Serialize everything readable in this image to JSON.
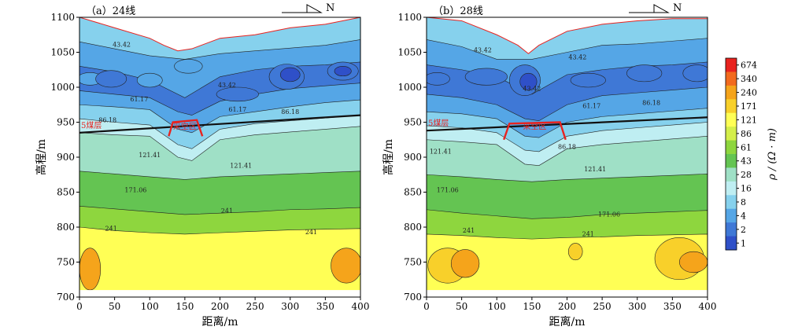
{
  "chart_data": [
    {
      "type": "heatmap",
      "panel_label": "（a）24线",
      "north_label": "N",
      "xlabel": "距离/m",
      "ylabel": "高程/m",
      "xlim": [
        0,
        400
      ],
      "ylim": [
        700,
        1100
      ],
      "x_ticks": [
        "0",
        "50",
        "100",
        "150",
        "200",
        "250",
        "300",
        "350",
        "400"
      ],
      "y_ticks": [
        "700",
        "750",
        "800",
        "850",
        "900",
        "950",
        "1000",
        "1050",
        "1100"
      ],
      "coal_seam_label": "5煤层",
      "goaf_label": "采空区",
      "coal_seam_line": [
        [
          0,
          935
        ],
        [
          400,
          960
        ]
      ],
      "goaf_outline": [
        [
          127,
          930
        ],
        [
          133,
          950
        ],
        [
          167,
          953
        ],
        [
          175,
          930
        ]
      ],
      "topography": [
        [
          0,
          1100
        ],
        [
          50,
          1085
        ],
        [
          100,
          1070
        ],
        [
          120,
          1060
        ],
        [
          140,
          1052
        ],
        [
          160,
          1055
        ],
        [
          200,
          1070
        ],
        [
          250,
          1075
        ],
        [
          300,
          1085
        ],
        [
          350,
          1090
        ],
        [
          400,
          1100
        ]
      ],
      "contour_labels": [
        "43.42",
        "43.42",
        "61.17",
        "61.17",
        "86.18",
        "86.18",
        "121.41",
        "121.41",
        "171.06",
        "241",
        "241",
        "241"
      ],
      "bands": [
        {
          "upper": [
            [
              0,
              1065
            ],
            [
              50,
              1055
            ],
            [
              100,
              1045
            ],
            [
              150,
              1040
            ],
            [
              200,
              1048
            ],
            [
              250,
              1052
            ],
            [
              300,
              1056
            ],
            [
              350,
              1060
            ],
            [
              400,
              1068
            ]
          ]
        },
        {
          "upper": [
            [
              0,
              1030
            ],
            [
              50,
              1022
            ],
            [
              100,
              1010
            ],
            [
              150,
              985
            ],
            [
              200,
              1015
            ],
            [
              250,
              1025
            ],
            [
              300,
              1030
            ],
            [
              350,
              1032
            ],
            [
              400,
              1036
            ]
          ]
        },
        {
          "upper": [
            [
              0,
              995
            ],
            [
              50,
              990
            ],
            [
              100,
              985
            ],
            [
              140,
              965
            ],
            [
              160,
              960
            ],
            [
              200,
              980
            ],
            [
              250,
              990
            ],
            [
              300,
              998
            ],
            [
              350,
              1002
            ],
            [
              400,
              1006
            ]
          ]
        },
        {
          "upper": [
            [
              0,
              975
            ],
            [
              50,
              972
            ],
            [
              100,
              968
            ],
            [
              140,
              940
            ],
            [
              160,
              935
            ],
            [
              200,
              958
            ],
            [
              250,
              965
            ],
            [
              300,
              972
            ],
            [
              350,
              978
            ],
            [
              400,
              982
            ]
          ]
        },
        {
          "upper": [
            [
              0,
              955
            ],
            [
              50,
              950
            ],
            [
              100,
              946
            ],
            [
              140,
              918
            ],
            [
              160,
              912
            ],
            [
              200,
              940
            ],
            [
              250,
              948
            ],
            [
              300,
              952
            ],
            [
              350,
              956
            ],
            [
              400,
              960
            ]
          ]
        },
        {
          "upper": [
            [
              0,
              935
            ],
            [
              50,
              932
            ],
            [
              100,
              930
            ],
            [
              140,
              900
            ],
            [
              160,
              895
            ],
            [
              200,
              925
            ],
            [
              250,
              932
            ],
            [
              300,
              936
            ],
            [
              350,
              940
            ],
            [
              400,
              944
            ]
          ]
        },
        {
          "upper": [
            [
              0,
              880
            ],
            [
              50,
              876
            ],
            [
              100,
              872
            ],
            [
              150,
              868
            ],
            [
              200,
              872
            ],
            [
              250,
              874
            ],
            [
              300,
              876
            ],
            [
              350,
              878
            ],
            [
              400,
              880
            ]
          ]
        },
        {
          "upper": [
            [
              0,
              830
            ],
            [
              50,
              826
            ],
            [
              100,
              822
            ],
            [
              150,
              818
            ],
            [
              200,
              820
            ],
            [
              250,
              822
            ],
            [
              300,
              825
            ],
            [
              350,
              826
            ],
            [
              400,
              828
            ]
          ]
        },
        {
          "upper": [
            [
              0,
              800
            ],
            [
              50,
              795
            ],
            [
              100,
              792
            ],
            [
              150,
              790
            ],
            [
              200,
              792
            ],
            [
              250,
              794
            ],
            [
              300,
              796
            ],
            [
              350,
              797
            ],
            [
              400,
              798
            ]
          ]
        }
      ],
      "blobs": [
        {
          "cx": 15,
          "cy": 1012,
          "rx": 18,
          "ry": 9,
          "level": 1
        },
        {
          "cx": 45,
          "cy": 1012,
          "rx": 22,
          "ry": 12,
          "level": 0
        },
        {
          "cx": 100,
          "cy": 1010,
          "rx": 18,
          "ry": 10,
          "level": 1
        },
        {
          "cx": 155,
          "cy": 1030,
          "rx": 20,
          "ry": 10,
          "level": 1
        },
        {
          "cx": 225,
          "cy": 990,
          "rx": 30,
          "ry": 10,
          "level": 0
        },
        {
          "cx": 295,
          "cy": 1015,
          "rx": 25,
          "ry": 18,
          "level": 0
        },
        {
          "cx": 300,
          "cy": 1018,
          "rx": 14,
          "ry": 10,
          "level": -1
        },
        {
          "cx": 375,
          "cy": 1023,
          "rx": 22,
          "ry": 13,
          "level": 0
        },
        {
          "cx": 375,
          "cy": 1023,
          "rx": 12,
          "ry": 7,
          "level": -1
        },
        {
          "cx": 15,
          "cy": 740,
          "rx": 15,
          "ry": 30,
          "level": 10
        },
        {
          "cx": 380,
          "cy": 745,
          "rx": 22,
          "ry": 25,
          "level": 10
        }
      ]
    },
    {
      "type": "heatmap",
      "panel_label": "（b）28线",
      "north_label": "N",
      "xlabel": "距离/m",
      "ylabel": "高程/m",
      "xlim": [
        0,
        400
      ],
      "ylim": [
        700,
        1100
      ],
      "x_ticks": [
        "0",
        "50",
        "100",
        "150",
        "200",
        "250",
        "300",
        "350",
        "400"
      ],
      "y_ticks": [
        "700",
        "750",
        "800",
        "850",
        "900",
        "950",
        "1000",
        "1050",
        "1100"
      ],
      "coal_seam_label": "5煤层",
      "goaf_label": "采空区",
      "coal_seam_line": [
        [
          0,
          938
        ],
        [
          400,
          957
        ]
      ],
      "goaf_outline": [
        [
          110,
          925
        ],
        [
          118,
          948
        ],
        [
          190,
          950
        ],
        [
          198,
          925
        ]
      ],
      "topography": [
        [
          0,
          1100
        ],
        [
          50,
          1095
        ],
        [
          100,
          1075
        ],
        [
          130,
          1060
        ],
        [
          145,
          1048
        ],
        [
          160,
          1060
        ],
        [
          200,
          1080
        ],
        [
          250,
          1090
        ],
        [
          300,
          1095
        ],
        [
          350,
          1098
        ],
        [
          400,
          1098
        ]
      ],
      "contour_labels": [
        "43.42",
        "43.42",
        "43.42",
        "61.17",
        "86.18",
        "86.18",
        "121.41",
        "121.41",
        "171.06",
        "171.06",
        "241",
        "241"
      ],
      "bands": [
        {
          "upper": [
            [
              0,
              1068
            ],
            [
              50,
              1058
            ],
            [
              100,
              1040
            ],
            [
              150,
              1040
            ],
            [
              200,
              1050
            ],
            [
              250,
              1060
            ],
            [
              300,
              1062
            ],
            [
              350,
              1066
            ],
            [
              400,
              1070
            ]
          ]
        },
        {
          "upper": [
            [
              0,
              1032
            ],
            [
              50,
              1025
            ],
            [
              100,
              1015
            ],
            [
              150,
              990
            ],
            [
              200,
              1018
            ],
            [
              250,
              1025
            ],
            [
              300,
              1030
            ],
            [
              350,
              1032
            ],
            [
              400,
              1036
            ]
          ]
        },
        {
          "upper": [
            [
              0,
              990
            ],
            [
              50,
              985
            ],
            [
              100,
              975
            ],
            [
              140,
              955
            ],
            [
              160,
              952
            ],
            [
              200,
              975
            ],
            [
              250,
              988
            ],
            [
              300,
              992
            ],
            [
              350,
              996
            ],
            [
              400,
              1000
            ]
          ]
        },
        {
          "upper": [
            [
              0,
              965
            ],
            [
              50,
              962
            ],
            [
              100,
              955
            ],
            [
              140,
              930
            ],
            [
              160,
              928
            ],
            [
              200,
              950
            ],
            [
              250,
              958
            ],
            [
              300,
              962
            ],
            [
              350,
              966
            ],
            [
              400,
              970
            ]
          ]
        },
        {
          "upper": [
            [
              0,
              945
            ],
            [
              50,
              942
            ],
            [
              100,
              935
            ],
            [
              140,
              910
            ],
            [
              160,
              908
            ],
            [
              200,
              930
            ],
            [
              250,
              938
            ],
            [
              300,
              942
            ],
            [
              350,
              946
            ],
            [
              400,
              950
            ]
          ]
        },
        {
          "upper": [
            [
              0,
              925
            ],
            [
              50,
              922
            ],
            [
              100,
              918
            ],
            [
              140,
              890
            ],
            [
              160,
              888
            ],
            [
              200,
              912
            ],
            [
              250,
              918
            ],
            [
              300,
              922
            ],
            [
              350,
              926
            ],
            [
              400,
              930
            ]
          ]
        },
        {
          "upper": [
            [
              0,
              875
            ],
            [
              50,
              872
            ],
            [
              100,
              868
            ],
            [
              150,
              865
            ],
            [
              200,
              868
            ],
            [
              250,
              870
            ],
            [
              300,
              872
            ],
            [
              350,
              874
            ],
            [
              400,
              876
            ]
          ]
        },
        {
          "upper": [
            [
              0,
              825
            ],
            [
              50,
              820
            ],
            [
              100,
              816
            ],
            [
              150,
              812
            ],
            [
              200,
              814
            ],
            [
              250,
              818
            ],
            [
              300,
              820
            ],
            [
              350,
              822
            ],
            [
              400,
              824
            ]
          ]
        },
        {
          "upper": [
            [
              0,
              790
            ],
            [
              50,
              788
            ],
            [
              100,
              785
            ],
            [
              150,
              783
            ],
            [
              200,
              785
            ],
            [
              250,
              786
            ],
            [
              300,
              788
            ],
            [
              350,
              789
            ],
            [
              400,
              790
            ]
          ]
        }
      ],
      "blobs": [
        {
          "cx": 15,
          "cy": 1012,
          "rx": 18,
          "ry": 9,
          "level": 0
        },
        {
          "cx": 85,
          "cy": 1015,
          "rx": 30,
          "ry": 12,
          "level": 0
        },
        {
          "cx": 140,
          "cy": 1010,
          "rx": 22,
          "ry": 22,
          "level": 0
        },
        {
          "cx": 145,
          "cy": 1008,
          "rx": 12,
          "ry": 12,
          "level": -1
        },
        {
          "cx": 230,
          "cy": 1010,
          "rx": 25,
          "ry": 10,
          "level": 0
        },
        {
          "cx": 310,
          "cy": 1020,
          "rx": 25,
          "ry": 12,
          "level": 0
        },
        {
          "cx": 385,
          "cy": 1020,
          "rx": 20,
          "ry": 12,
          "level": 0
        },
        {
          "cx": 30,
          "cy": 745,
          "rx": 28,
          "ry": 25,
          "level": 9
        },
        {
          "cx": 55,
          "cy": 748,
          "rx": 20,
          "ry": 20,
          "level": 10
        },
        {
          "cx": 212,
          "cy": 765,
          "rx": 10,
          "ry": 12,
          "level": 9
        },
        {
          "cx": 360,
          "cy": 755,
          "rx": 35,
          "ry": 30,
          "level": 9
        },
        {
          "cx": 380,
          "cy": 750,
          "rx": 20,
          "ry": 15,
          "level": 10
        }
      ]
    }
  ],
  "colorbar": {
    "title": "ρ / (Ω · m)",
    "ticks": [
      "674",
      "340",
      "240",
      "171",
      "121",
      "86",
      "61",
      "43",
      "28",
      "16",
      "8",
      "4",
      "2",
      "1"
    ],
    "colors": [
      "#e8231f",
      "#f26a1e",
      "#f5a41b",
      "#f8d02a",
      "#ffff55",
      "#d4ee4a",
      "#8ed63e",
      "#64c452",
      "#9fe0c6",
      "#bfeef2",
      "#86d1ed",
      "#55a6e6",
      "#3f78d6",
      "#2f50c8"
    ]
  }
}
